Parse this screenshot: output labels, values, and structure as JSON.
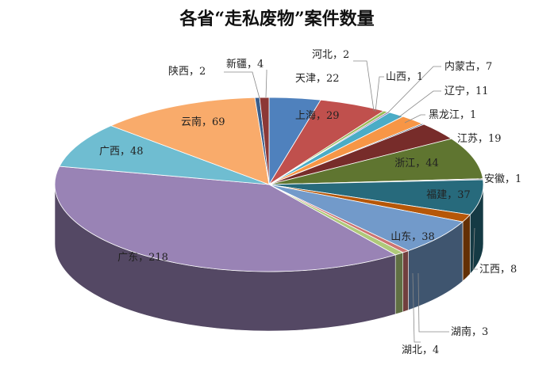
{
  "chart_data": {
    "type": "pie",
    "title": "各省“走私废物”案件数量",
    "slices": [
      {
        "label": "天津",
        "value": 22,
        "text": "天津，22",
        "color": "#4F81BD"
      },
      {
        "label": "上海",
        "value": 29,
        "text": "上海，29",
        "color": "#C0504D"
      },
      {
        "label": "河北",
        "value": 2,
        "text": "河北，2",
        "color": "#9BBB59"
      },
      {
        "label": "山西",
        "value": 1,
        "text": "山西，1",
        "color": "#8064A2"
      },
      {
        "label": "内蒙古",
        "value": 7,
        "text": "内蒙古，7",
        "color": "#4BACC6"
      },
      {
        "label": "辽宁",
        "value": 11,
        "text": "辽宁，11",
        "color": "#F79646"
      },
      {
        "label": "黑龙江",
        "value": 1,
        "text": "黑龙江，1",
        "color": "#2C4D75"
      },
      {
        "label": "江苏",
        "value": 19,
        "text": "江苏，19",
        "color": "#772C2A"
      },
      {
        "label": "浙江",
        "value": 44,
        "text": "浙江，44",
        "color": "#5F7530"
      },
      {
        "label": "安徽",
        "value": 1,
        "text": "安徽，1",
        "color": "#4D3B62"
      },
      {
        "label": "福建",
        "value": 37,
        "text": "福建，37",
        "color": "#276A7C"
      },
      {
        "label": "江西",
        "value": 8,
        "text": "江西，8",
        "color": "#B65708"
      },
      {
        "label": "山东",
        "value": 38,
        "text": "山东，38",
        "color": "#729ACA"
      },
      {
        "label": "湖南",
        "value": 3,
        "text": "湖南，3",
        "color": "#CD7371"
      },
      {
        "label": "湖北",
        "value": 4,
        "text": "湖北，4",
        "color": "#AFC97A"
      },
      {
        "label": "广东",
        "value": 218,
        "text": "广东，218",
        "color": "#9983B5"
      },
      {
        "label": "广西",
        "value": 48,
        "text": "广西，48",
        "color": "#6FBDD1"
      },
      {
        "label": "云南",
        "value": 69,
        "text": "云南，69",
        "color": "#F9AB6B"
      },
      {
        "label": "陕西",
        "value": 2,
        "text": "陕西，2",
        "color": "#3A5E8C"
      },
      {
        "label": "新疆",
        "value": 4,
        "text": "新疆，4",
        "color": "#8C3836"
      }
    ]
  }
}
